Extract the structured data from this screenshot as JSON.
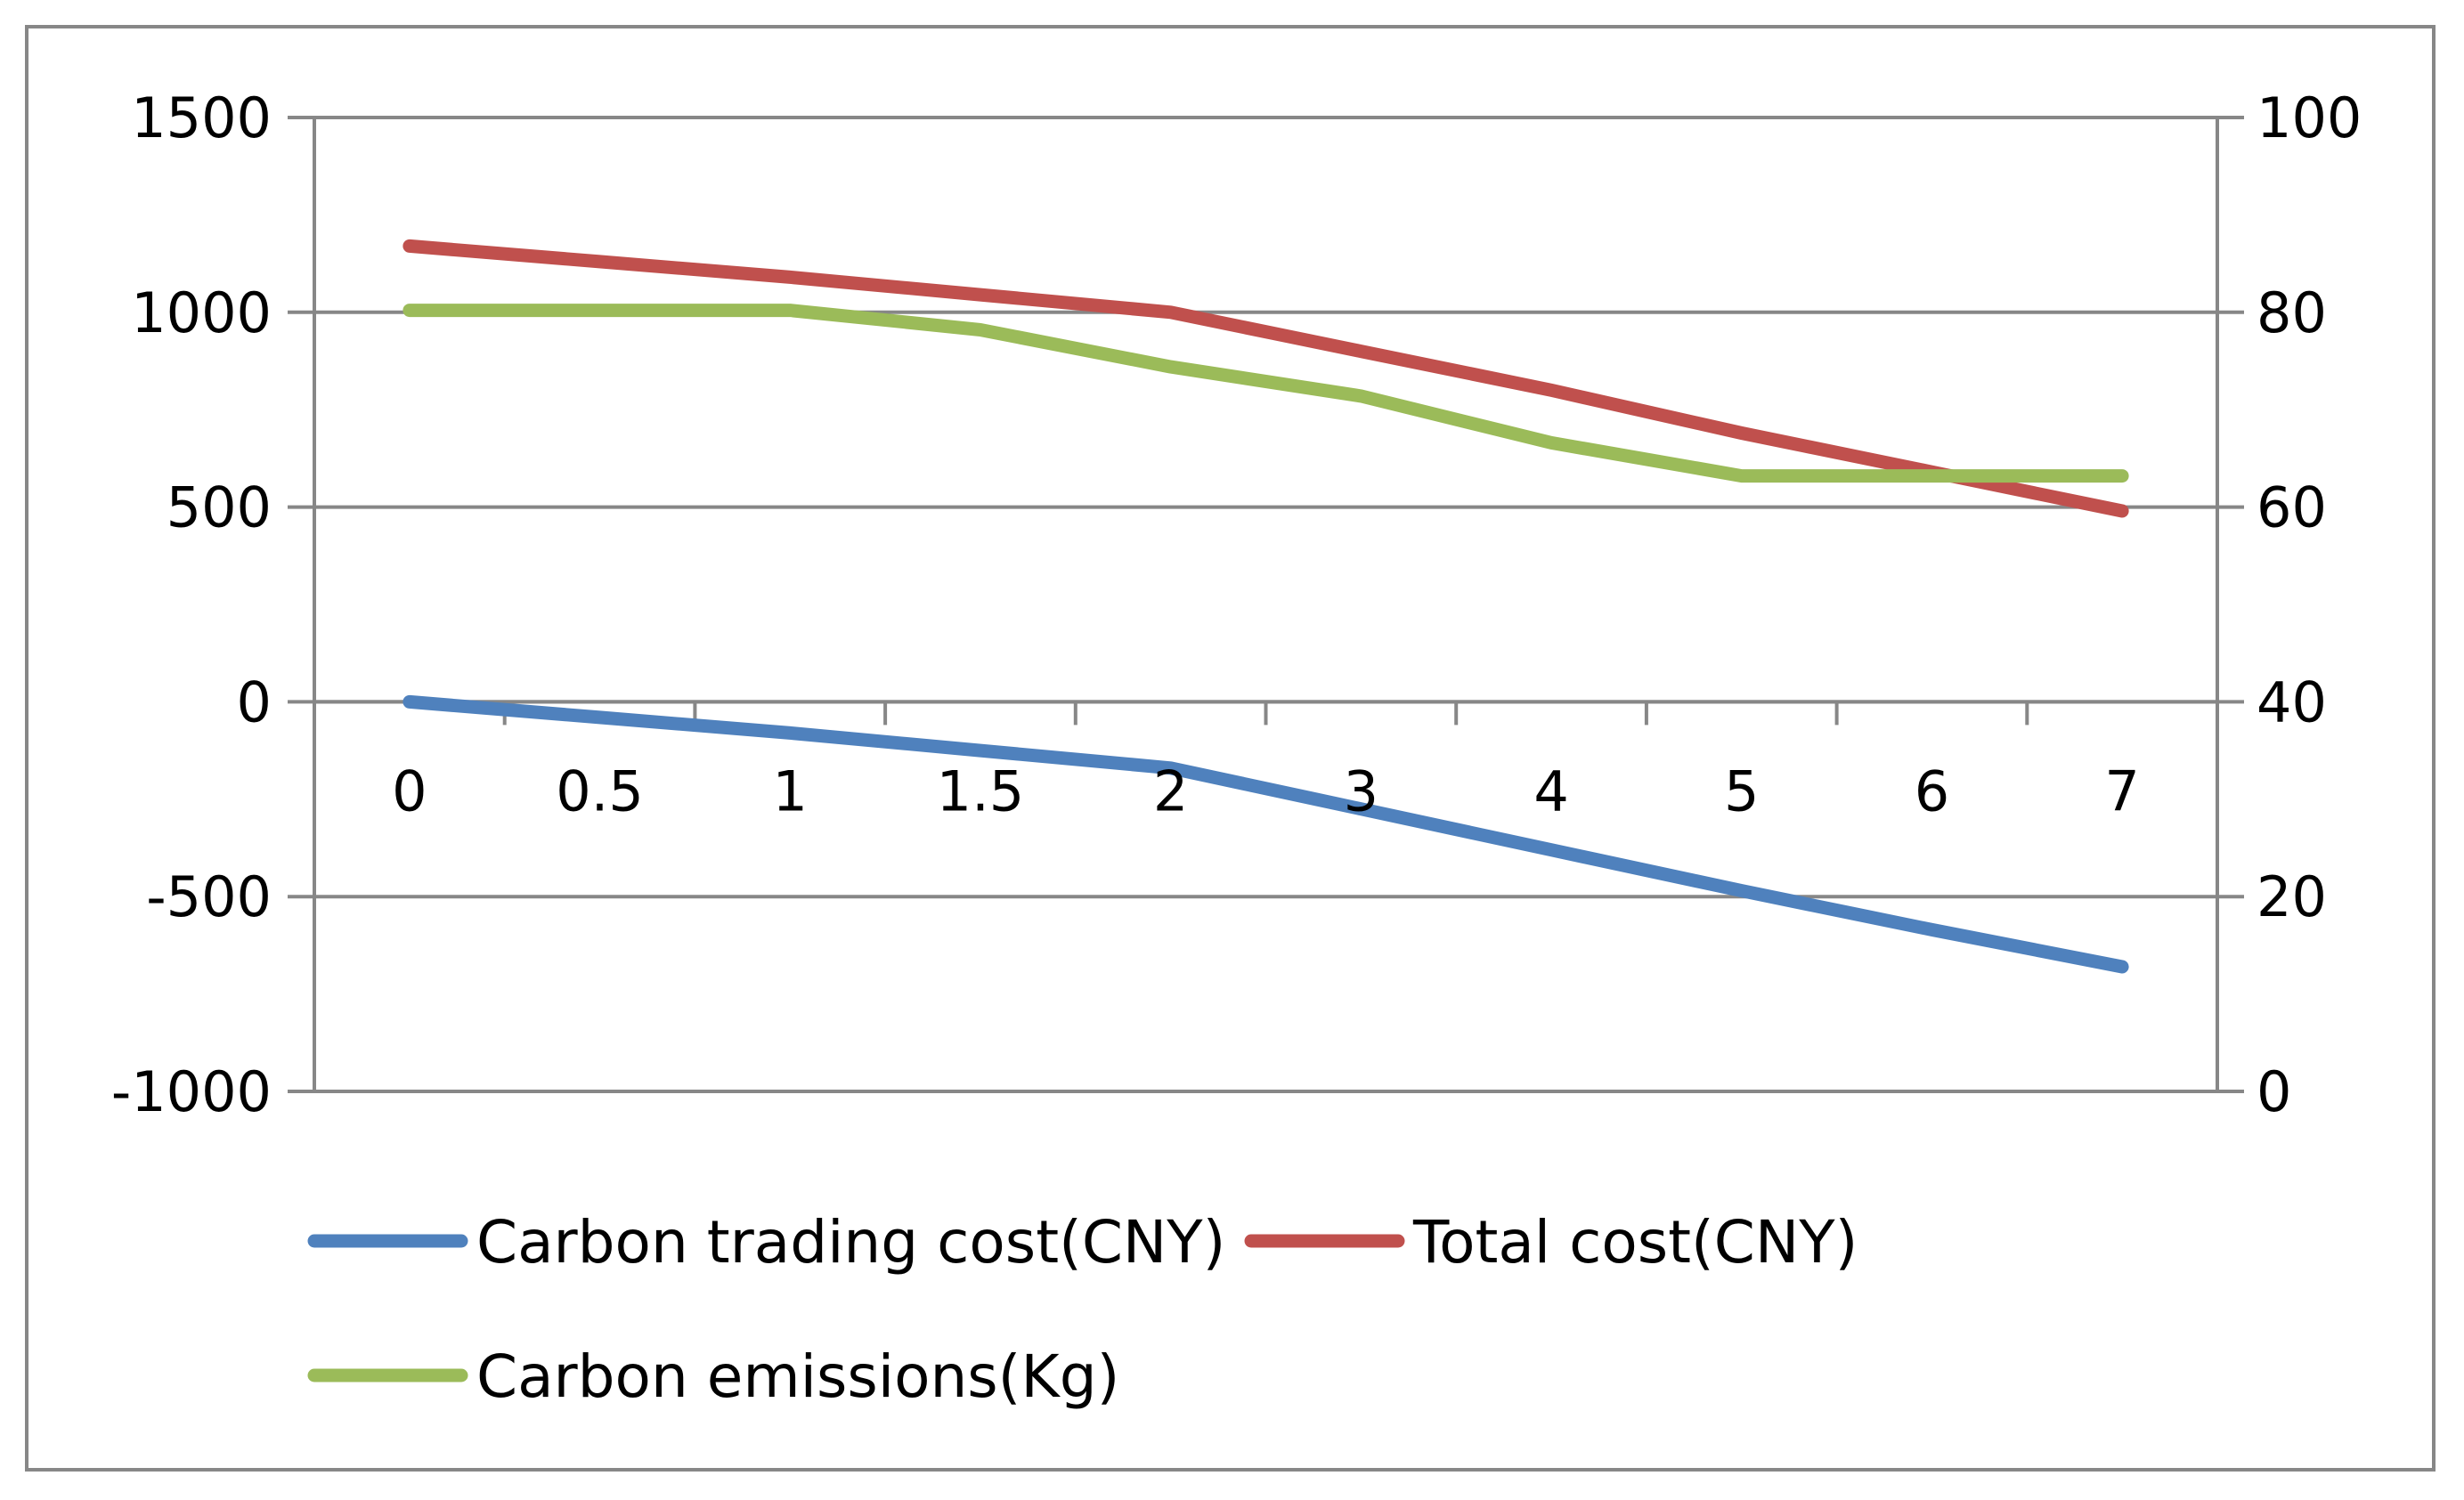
{
  "chart_data": {
    "type": "line",
    "title": "",
    "xlabel": "",
    "ylabel": "",
    "categories": [
      "0",
      "0.5",
      "1",
      "1.5",
      "2",
      "3",
      "4",
      "5",
      "6",
      "7"
    ],
    "y_left": {
      "range": [
        -1000,
        1500
      ],
      "ticks": [
        "1500",
        "1000",
        "500",
        "0",
        "-500",
        "-1000"
      ],
      "tick_values": [
        1500,
        1000,
        500,
        0,
        -500,
        -1000
      ]
    },
    "y_right": {
      "range": [
        0,
        100
      ],
      "ticks": [
        "100",
        "80",
        "60",
        "40",
        "20",
        "0"
      ],
      "tick_values": [
        100,
        80,
        60,
        40,
        20,
        0
      ]
    },
    "grid": true,
    "legend_position": "bottom",
    "series": [
      {
        "name": "Carbon trading cost(CNY)",
        "axis": "left",
        "color": "#4f81bd",
        "values": [
          0,
          -40,
          -80,
          -125,
          -170,
          -275,
          -380,
          -485,
          -585,
          -680
        ]
      },
      {
        "name": "Total cost(CNY)",
        "axis": "left",
        "color": "#c0504d",
        "values": [
          1170,
          1130,
          1090,
          1045,
          1000,
          900,
          800,
          690,
          590,
          490
        ]
      },
      {
        "name": "Carbon emissions(Kg)",
        "axis": "right",
        "color": "#9bbb59",
        "values": [
          80.2,
          80.2,
          80.2,
          78.2,
          74.4,
          71.4,
          66.6,
          63.2,
          63.2,
          63.2
        ]
      }
    ]
  }
}
